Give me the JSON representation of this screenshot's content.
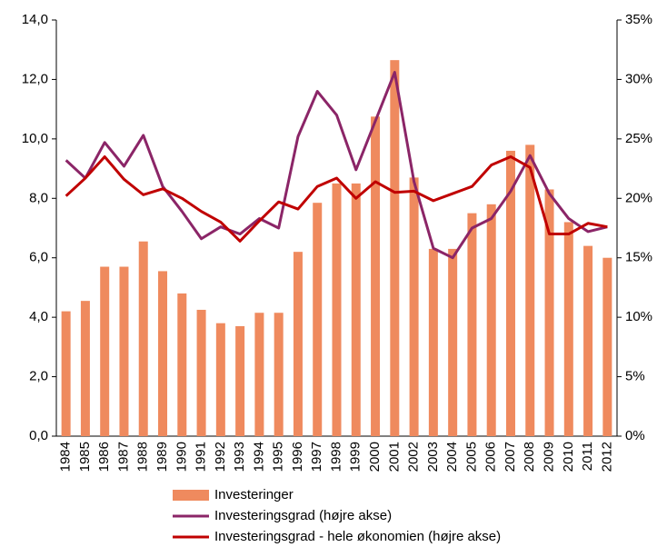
{
  "chart_data": {
    "type": "bar",
    "categories": [
      "1984",
      "1985",
      "1986",
      "1987",
      "1988",
      "1989",
      "1990",
      "1991",
      "1992",
      "1993",
      "1994",
      "1995",
      "1996",
      "1997",
      "1998",
      "1999",
      "2000",
      "2001",
      "2002",
      "2003",
      "2004",
      "2005",
      "2006",
      "2007",
      "2008",
      "2009",
      "2010",
      "2011",
      "2012"
    ],
    "series": [
      {
        "name": "Investeringer",
        "type": "bar",
        "color": "#ef8a5e",
        "axis": "y",
        "values": [
          4.2,
          4.55,
          5.7,
          5.7,
          6.55,
          5.55,
          4.8,
          4.25,
          3.8,
          3.7,
          4.15,
          4.15,
          6.2,
          7.85,
          8.5,
          8.5,
          10.75,
          12.65,
          8.7,
          6.3,
          6.3,
          7.5,
          7.8,
          9.6,
          9.8,
          8.3,
          7.2,
          6.4,
          6.0
        ]
      },
      {
        "name": "Investeringsgrad (højre akse)",
        "type": "line",
        "color": "#8b2567",
        "axis": "y2",
        "values": [
          23.2,
          21.7,
          24.7,
          22.7,
          25.3,
          21.0,
          18.9,
          16.6,
          17.6,
          17.0,
          18.3,
          17.5,
          25.2,
          29.0,
          27.0,
          22.4,
          26.5,
          30.6,
          21.4,
          15.8,
          15.0,
          17.5,
          18.3,
          20.6,
          23.6,
          20.4,
          18.3,
          17.2,
          17.6
        ]
      },
      {
        "name": "Investeringsgrad - hele økonomien (højre akse)",
        "type": "line",
        "color": "#c00000",
        "axis": "y2",
        "values": [
          20.2,
          21.7,
          23.5,
          21.6,
          20.3,
          20.8,
          20.0,
          18.9,
          18.0,
          16.4,
          18.1,
          19.7,
          19.1,
          21.0,
          21.7,
          20.0,
          21.4,
          20.5,
          20.6,
          19.8,
          20.4,
          21.0,
          22.8,
          23.5,
          22.6,
          17.0,
          17.0,
          17.9,
          17.6
        ]
      }
    ],
    "ylim": [
      0,
      14
    ],
    "yticks": [
      {
        "value": 0,
        "label": "0,0"
      },
      {
        "value": 2,
        "label": "2,0"
      },
      {
        "value": 4,
        "label": "4,0"
      },
      {
        "value": 6,
        "label": "6,0"
      },
      {
        "value": 8,
        "label": "8,0"
      },
      {
        "value": 10,
        "label": "10,0"
      },
      {
        "value": 12,
        "label": "12,0"
      },
      {
        "value": 14,
        "label": "14,0"
      }
    ],
    "y2lim": [
      0,
      35
    ],
    "y2ticks": [
      {
        "value": 0,
        "label": "0%"
      },
      {
        "value": 5,
        "label": "5%"
      },
      {
        "value": 10,
        "label": "10%"
      },
      {
        "value": 15,
        "label": "15%"
      },
      {
        "value": 20,
        "label": "20%"
      },
      {
        "value": 25,
        "label": "25%"
      },
      {
        "value": 30,
        "label": "30%"
      },
      {
        "value": 35,
        "label": "35%"
      }
    ],
    "grid": false,
    "legend": "bottom"
  }
}
